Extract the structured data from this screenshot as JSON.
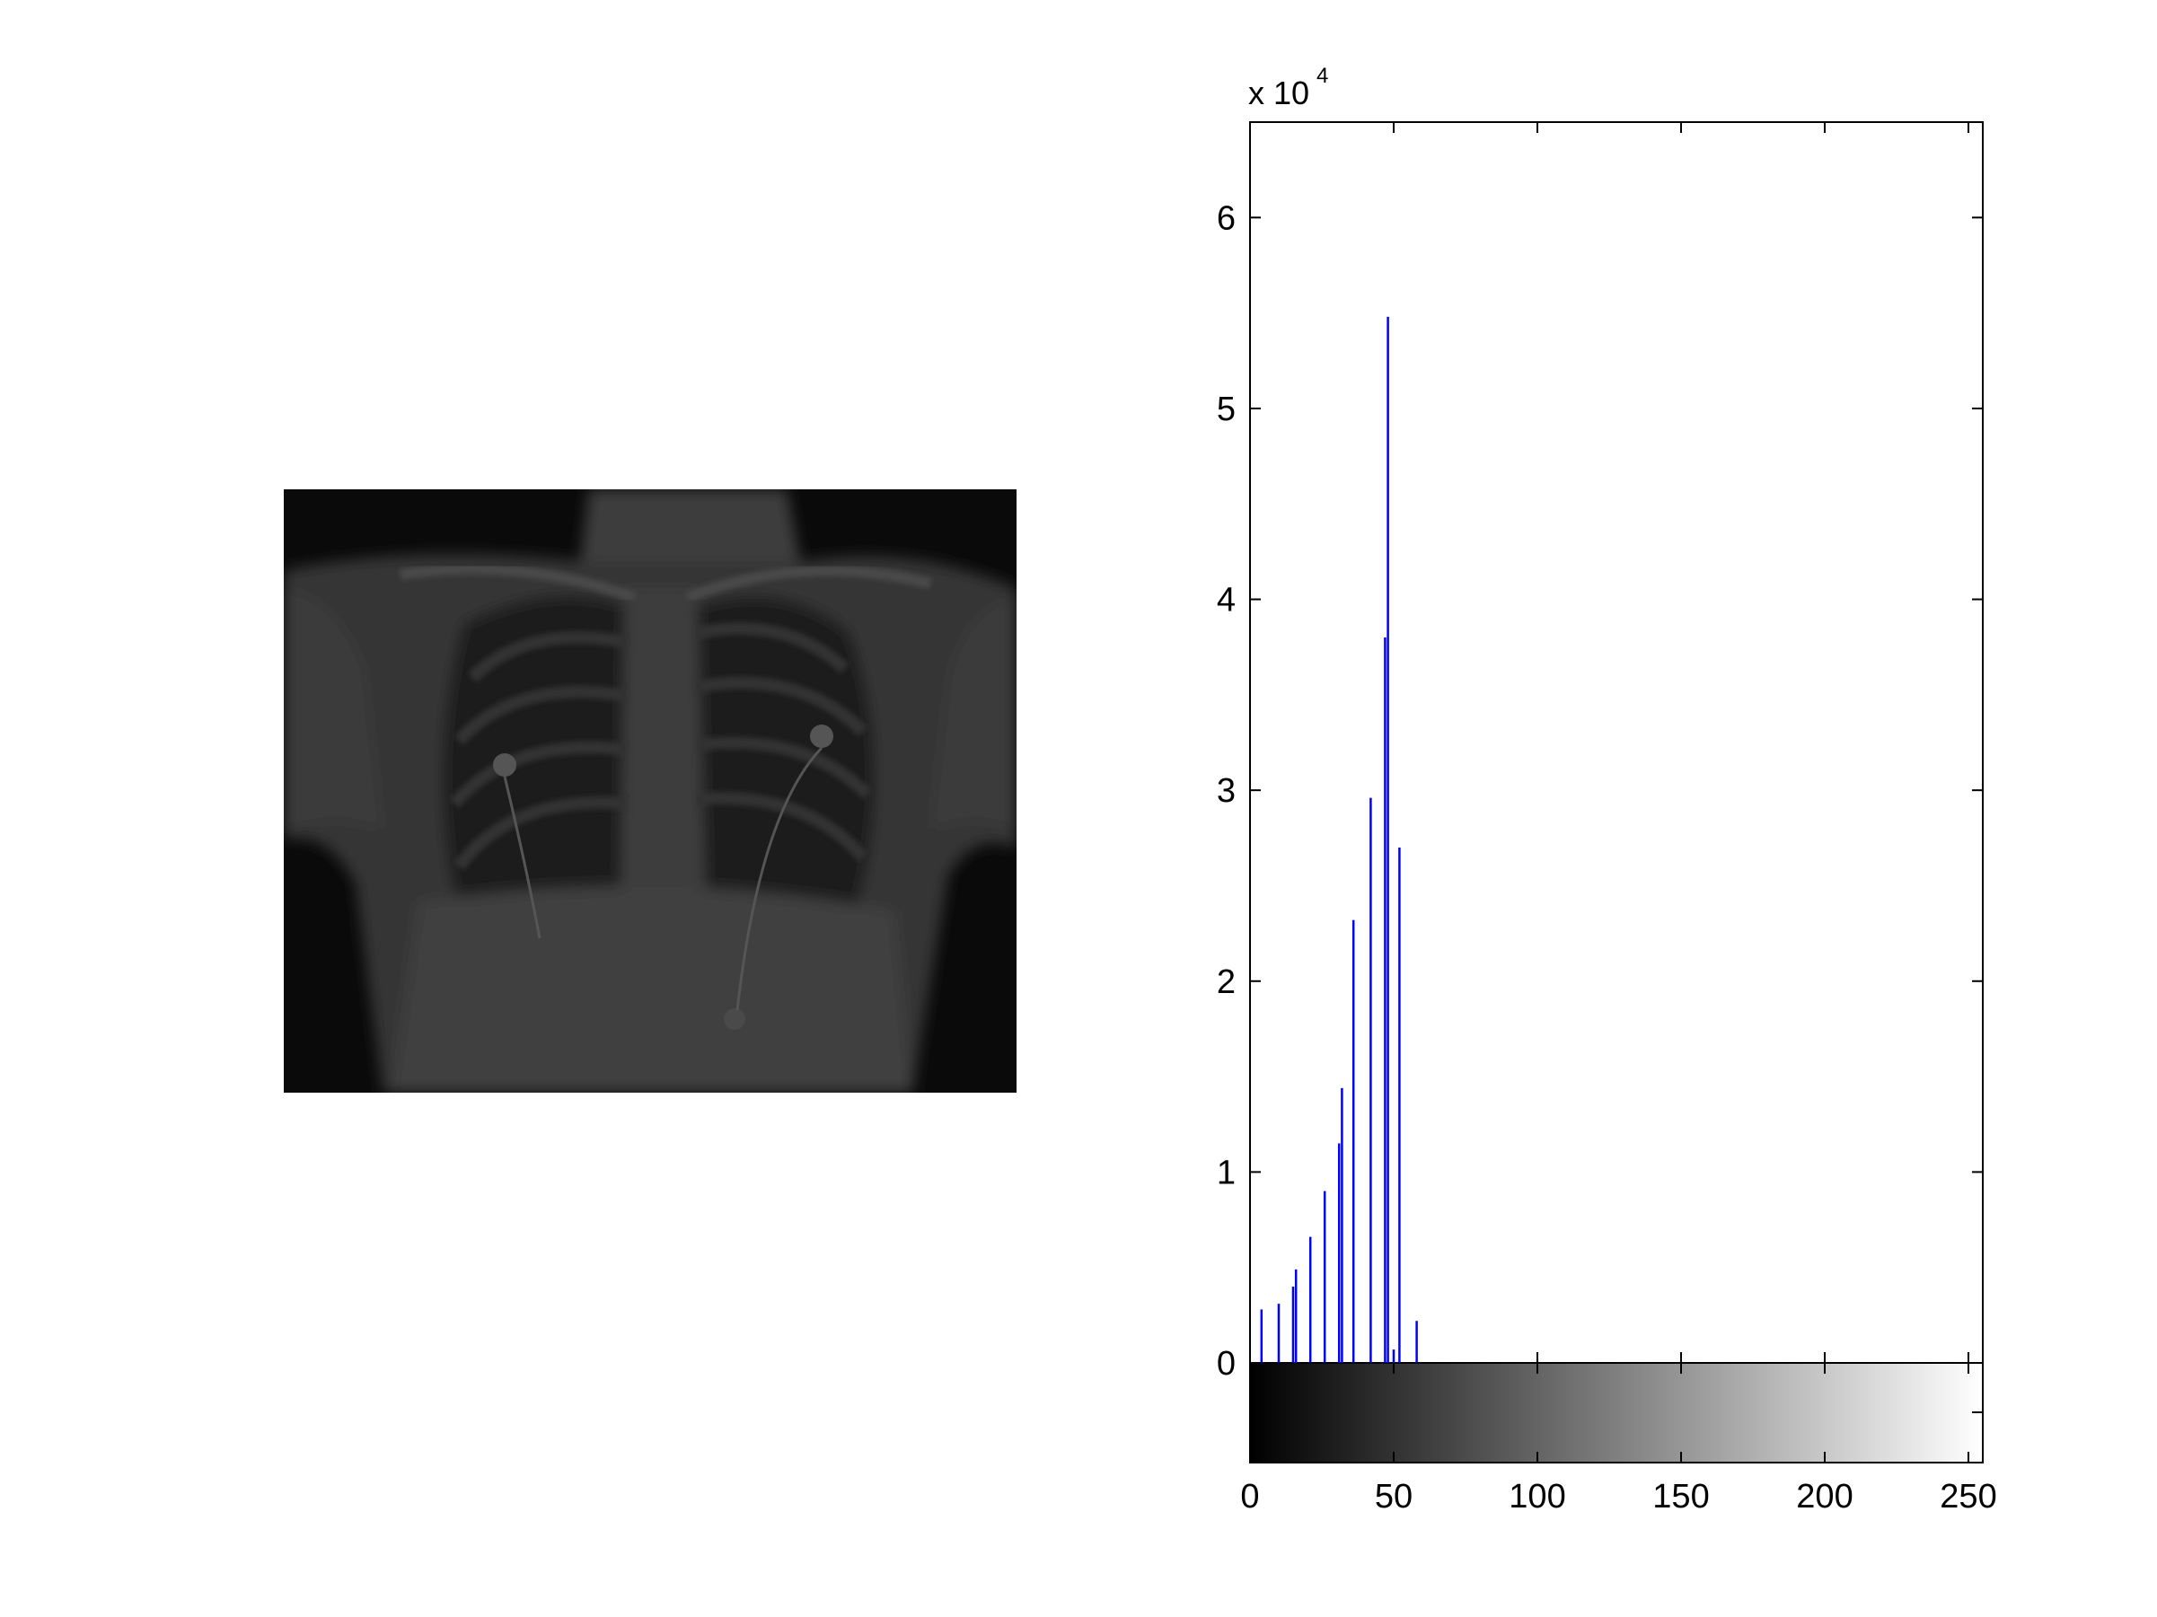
{
  "figure": {
    "image_panel": {
      "content": "chest x-ray image"
    },
    "colors": {
      "bars": "#0000ff",
      "axes": "#000000",
      "background": "#ffffff"
    }
  },
  "chart_data": {
    "type": "bar",
    "title": "",
    "xlabel": "",
    "ylabel": "",
    "xlim": [
      0,
      255
    ],
    "ylim": [
      0,
      65000
    ],
    "y_multiplier_label": {
      "base": "x 10",
      "exponent": "4"
    },
    "x_ticks": [
      0,
      50,
      100,
      150,
      200,
      250
    ],
    "y_ticks": [
      0,
      1,
      2,
      3,
      4,
      5,
      6
    ],
    "grid": false,
    "colorbar": {
      "from": "#000000",
      "to": "#ffffff",
      "range": [
        0,
        255
      ]
    },
    "x": [
      4,
      10,
      15,
      16,
      21,
      26,
      31,
      32,
      36,
      42,
      47,
      48,
      50,
      52,
      58
    ],
    "values": [
      2800,
      3100,
      4000,
      4900,
      6600,
      9000,
      11500,
      14400,
      23200,
      29600,
      38000,
      54800,
      700,
      27000,
      2200
    ]
  }
}
